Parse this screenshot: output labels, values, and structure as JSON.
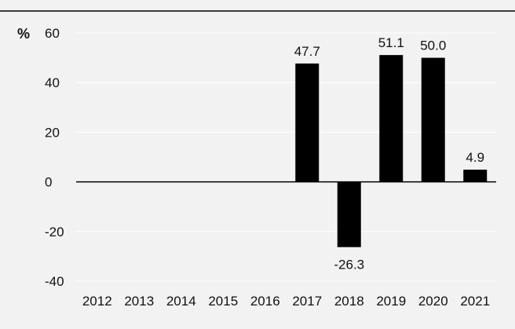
{
  "chart_data": {
    "type": "bar",
    "title": "",
    "xlabel": "",
    "ylabel": "%",
    "categories": [
      "2012",
      "2013",
      "2014",
      "2015",
      "2016",
      "2017",
      "2018",
      "2019",
      "2020",
      "2021"
    ],
    "values": [
      null,
      null,
      null,
      null,
      null,
      47.7,
      -26.3,
      51.1,
      50.0,
      4.9
    ],
    "data_labels": [
      "",
      "",
      "",
      "",
      "",
      "47.7",
      "-26.3",
      "51.1",
      "50.0",
      "4.9"
    ],
    "ylim": [
      -40,
      60
    ],
    "yticks": [
      60,
      40,
      20,
      0,
      -20,
      -40
    ],
    "grid": true,
    "legend": "none",
    "colors": {
      "background": "#f2f2f2",
      "bar": "#000000",
      "grid": "#ffffff",
      "zero_line": "#000000",
      "top_rule": "#000000"
    }
  }
}
